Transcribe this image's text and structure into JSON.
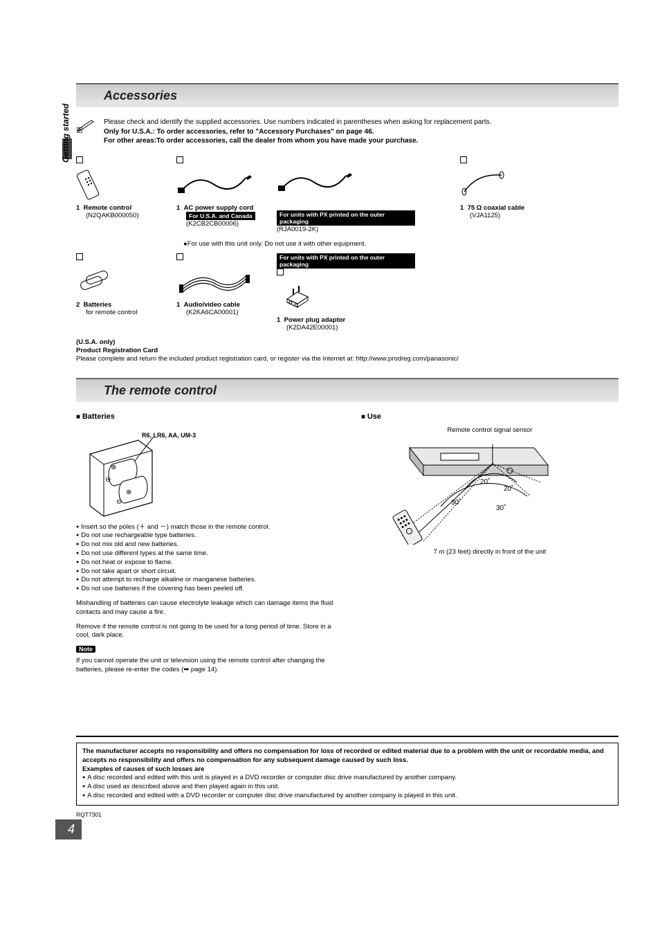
{
  "side_label": "Getting started",
  "section1_title": "Accessories",
  "intro": {
    "line1": "Please check and identify the supplied accessories. Use numbers indicated in parentheses when asking for replacement parts.",
    "line2": "Only for U.S.A.: To order accessories, refer to \"Accessory Purchases\" on page 46.",
    "line3": "For other areas:To order accessories, call the dealer from whom you have made your purchase."
  },
  "acc_row1": {
    "remote": {
      "qty": "1",
      "name": "Remote control",
      "part": "(N2QAKB000050)"
    },
    "power": {
      "qty": "1",
      "name": "AC power supply cord",
      "tag1": "For U.S.A. and Canada",
      "part1": "(K2CB2CB00006)",
      "tag2": "For units with PX printed on the outer packaging",
      "part2": "(RJA0019-2K)"
    },
    "coax": {
      "qty": "1",
      "name": "75 Ω coaxial cable",
      "part": "(VJA1125)"
    }
  },
  "power_note": "For use with this unit only. Do not use it with other equipment.",
  "acc_row2": {
    "batt": {
      "qty": "2",
      "name": "Batteries",
      "sub": "for remote control"
    },
    "av": {
      "qty": "1",
      "name": "Audio/video cable",
      "part": "(K2KA6CA00001)"
    },
    "plug": {
      "qty": "1",
      "name": "Power plug adaptor",
      "part": "(K2DA42E00001)",
      "tag": "For units with PX printed on the outer packaging"
    }
  },
  "reg": {
    "l1": "(U.S.A. only)",
    "l2": "Product Registration Card",
    "l3": "Please complete and return the included product registration card, or register via the Internet at: http://www.prodreg.com/panasonic/"
  },
  "section2_title": "The remote control",
  "batteries": {
    "heading": "Batteries",
    "label": "R6, LR6, AA, UM-3",
    "notes": [
      "Insert so the poles (＋ and －) match those in the remote control.",
      "Do not use rechargeable type batteries.",
      "Do not mix old and new batteries.",
      "Do not use different types at the same time.",
      "Do not heat or expose to flame.",
      "Do not take apart or short circuit.",
      "Do not attempt to recharge alkaline or manganese batteries.",
      "Do not use batteries if the covering has been peeled off."
    ],
    "para1": "Mishandling of batteries can cause electrolyte leakage which can damage items the fluid contacts and may cause a fire.",
    "para2": "Remove if the remote control is not going to be used for a long period of time. Store in a cool, dark place.",
    "note_label": "Note",
    "note_text": "If you cannot operate the unit or television using the remote control after changing the batteries, please re-enter the codes (➡ page 14)."
  },
  "use": {
    "heading": "Use",
    "caption": "Remote control signal sensor",
    "angles": {
      "tl": "20˚",
      "tr": "20˚",
      "bl": "30˚",
      "br": "30˚"
    },
    "footer": "7 m (23 feet) directly in front of the unit"
  },
  "disclaimer": {
    "p1": "The manufacturer accepts no responsibility and offers no compensation for loss of recorded or edited material due to a problem with the unit or recordable media, and accepts no responsibility and offers no compensation for any subsequent damage caused by such loss.",
    "p2": "Examples of causes of such losses are",
    "items": [
      "A disc recorded and edited with this unit is played in a DVD recorder or computer disc drive manufactured by another company.",
      "A disc used as described above and then played again in this unit.",
      "A disc recorded and edited with a DVD recorder or computer disc drive manufactured by another company is played in this unit."
    ]
  },
  "doc_code": "RQT7301",
  "page_number": "4"
}
